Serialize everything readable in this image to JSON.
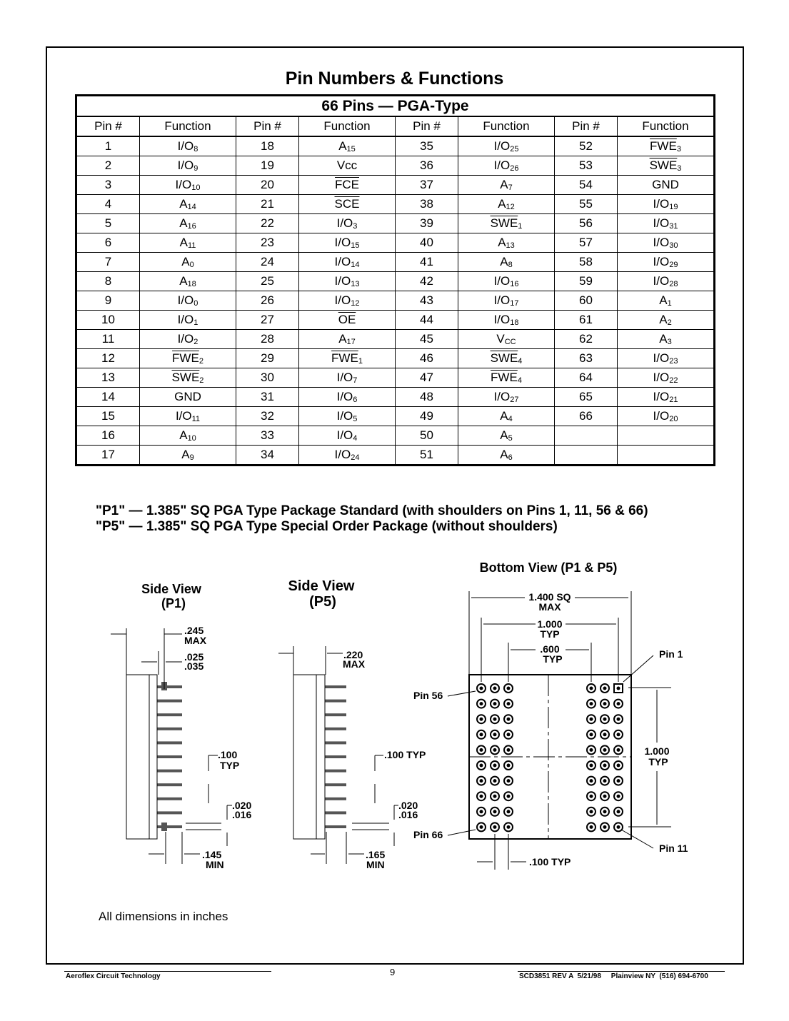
{
  "title": "Pin Numbers & Functions",
  "table": {
    "caption": "66 Pins — PGA-Type",
    "headers": [
      "Pin #",
      "Function",
      "Pin #",
      "Function",
      "Pin #",
      "Function",
      "Pin #",
      "Function"
    ],
    "columns": [
      [
        [
          "1",
          "I/O",
          "8"
        ],
        [
          "2",
          "I/O",
          "9"
        ],
        [
          "3",
          "I/O",
          "10"
        ],
        [
          "4",
          "A",
          "14"
        ],
        [
          "5",
          "A",
          "16"
        ],
        [
          "6",
          "A",
          "11"
        ],
        [
          "7",
          "A",
          "0"
        ],
        [
          "8",
          "A",
          "18"
        ],
        [
          "9",
          "I/O",
          "0"
        ],
        [
          "10",
          "I/O",
          "1"
        ],
        [
          "11",
          "I/O",
          "2"
        ],
        [
          "12",
          "~FWE",
          "2"
        ],
        [
          "13",
          "~SWE",
          "2"
        ],
        [
          "14",
          "GND",
          ""
        ],
        [
          "15",
          "I/O",
          "11"
        ],
        [
          "16",
          "A",
          "10"
        ],
        [
          "17",
          "A",
          "9"
        ]
      ],
      [
        [
          "18",
          "A",
          "15"
        ],
        [
          "19",
          "Vcc",
          ""
        ],
        [
          "20",
          "~FCE",
          ""
        ],
        [
          "21",
          "~SCE",
          ""
        ],
        [
          "22",
          "I/O",
          "3"
        ],
        [
          "23",
          "I/O",
          "15"
        ],
        [
          "24",
          "I/O",
          "14"
        ],
        [
          "25",
          "I/O",
          "13"
        ],
        [
          "26",
          "I/O",
          "12"
        ],
        [
          "27",
          "~OE",
          ""
        ],
        [
          "28",
          "A",
          "17"
        ],
        [
          "29",
          "~FWE",
          "1"
        ],
        [
          "30",
          "I/O",
          "7"
        ],
        [
          "31",
          "I/O",
          "6"
        ],
        [
          "32",
          "I/O",
          "5"
        ],
        [
          "33",
          "I/O",
          "4"
        ],
        [
          "34",
          "I/O",
          "24"
        ]
      ],
      [
        [
          "35",
          "I/O",
          "25"
        ],
        [
          "36",
          "I/O",
          "26"
        ],
        [
          "37",
          "A",
          "7"
        ],
        [
          "38",
          "A",
          "12"
        ],
        [
          "39",
          "~SWE",
          "1"
        ],
        [
          "40",
          "A",
          "13"
        ],
        [
          "41",
          "A",
          "8"
        ],
        [
          "42",
          "I/O",
          "16"
        ],
        [
          "43",
          "I/O",
          "17"
        ],
        [
          "44",
          "I/O",
          "18"
        ],
        [
          "45",
          "V",
          "CC"
        ],
        [
          "46",
          "~SWE",
          "4"
        ],
        [
          "47",
          "~FWE",
          "4"
        ],
        [
          "48",
          "I/O",
          "27"
        ],
        [
          "49",
          "A",
          "4"
        ],
        [
          "50",
          "A",
          "5"
        ],
        [
          "51",
          "A",
          "6"
        ]
      ],
      [
        [
          "52",
          "~FWE",
          "3"
        ],
        [
          "53",
          "~SWE",
          "3"
        ],
        [
          "54",
          "GND",
          ""
        ],
        [
          "55",
          "I/O",
          "19"
        ],
        [
          "56",
          "I/O",
          "31"
        ],
        [
          "57",
          "I/O",
          "30"
        ],
        [
          "58",
          "I/O",
          "29"
        ],
        [
          "59",
          "I/O",
          "28"
        ],
        [
          "60",
          "A",
          "1"
        ],
        [
          "61",
          "A",
          "2"
        ],
        [
          "62",
          "A",
          "3"
        ],
        [
          "63",
          "I/O",
          "23"
        ],
        [
          "64",
          "I/O",
          "22"
        ],
        [
          "65",
          "I/O",
          "21"
        ],
        [
          "66",
          "I/O",
          "20"
        ],
        [
          "",
          "",
          ""
        ],
        [
          "",
          "",
          ""
        ]
      ]
    ]
  },
  "packages": [
    "\"P1\" —  1.385\" SQ PGA Type Package Standard (with shoulders on Pins 1, 11, 56 & 66)",
    "\"P5\" —  1.385\" SQ PGA Type Special Order Package (without shoulders)"
  ],
  "drawing": {
    "side_p1": {
      "title1": "Side View",
      "title2": "(P1)",
      "d1a": ".245",
      "d1b": "MAX",
      "d2a": ".025",
      "d2b": ".035",
      "d3a": ".100",
      "d3b": "TYP",
      "d4a": ".020",
      "d4b": ".016",
      "d5a": ".145",
      "d5b": "MIN"
    },
    "side_p5": {
      "title1": "Side View",
      "title2": "(P5)",
      "d1a": ".220",
      "d1b": "MAX",
      "d3": ".100 TYP",
      "d4a": ".020",
      "d4b": ".016",
      "d5a": ".165",
      "d5b": "MIN"
    },
    "bottom": {
      "title": "Bottom View (P1 & P5)",
      "d1a": "1.400 SQ",
      "d1b": "MAX",
      "d2a": "1.000",
      "d2b": "TYP",
      "d3a": ".600",
      "d3b": "TYP",
      "pin1": "Pin 1",
      "pin56": "Pin 56",
      "pin66": "Pin 66",
      "pin11": "Pin 11",
      "d4a": "1.000",
      "d4b": "TYP",
      "d5": ".100 TYP"
    }
  },
  "note": "All dimensions in inches",
  "footer": {
    "left": "Aeroflex Circuit Technology",
    "page": "9",
    "right": "SCD3851 REV A  5/21/98     Plainview NY  (516) 694-6700"
  }
}
